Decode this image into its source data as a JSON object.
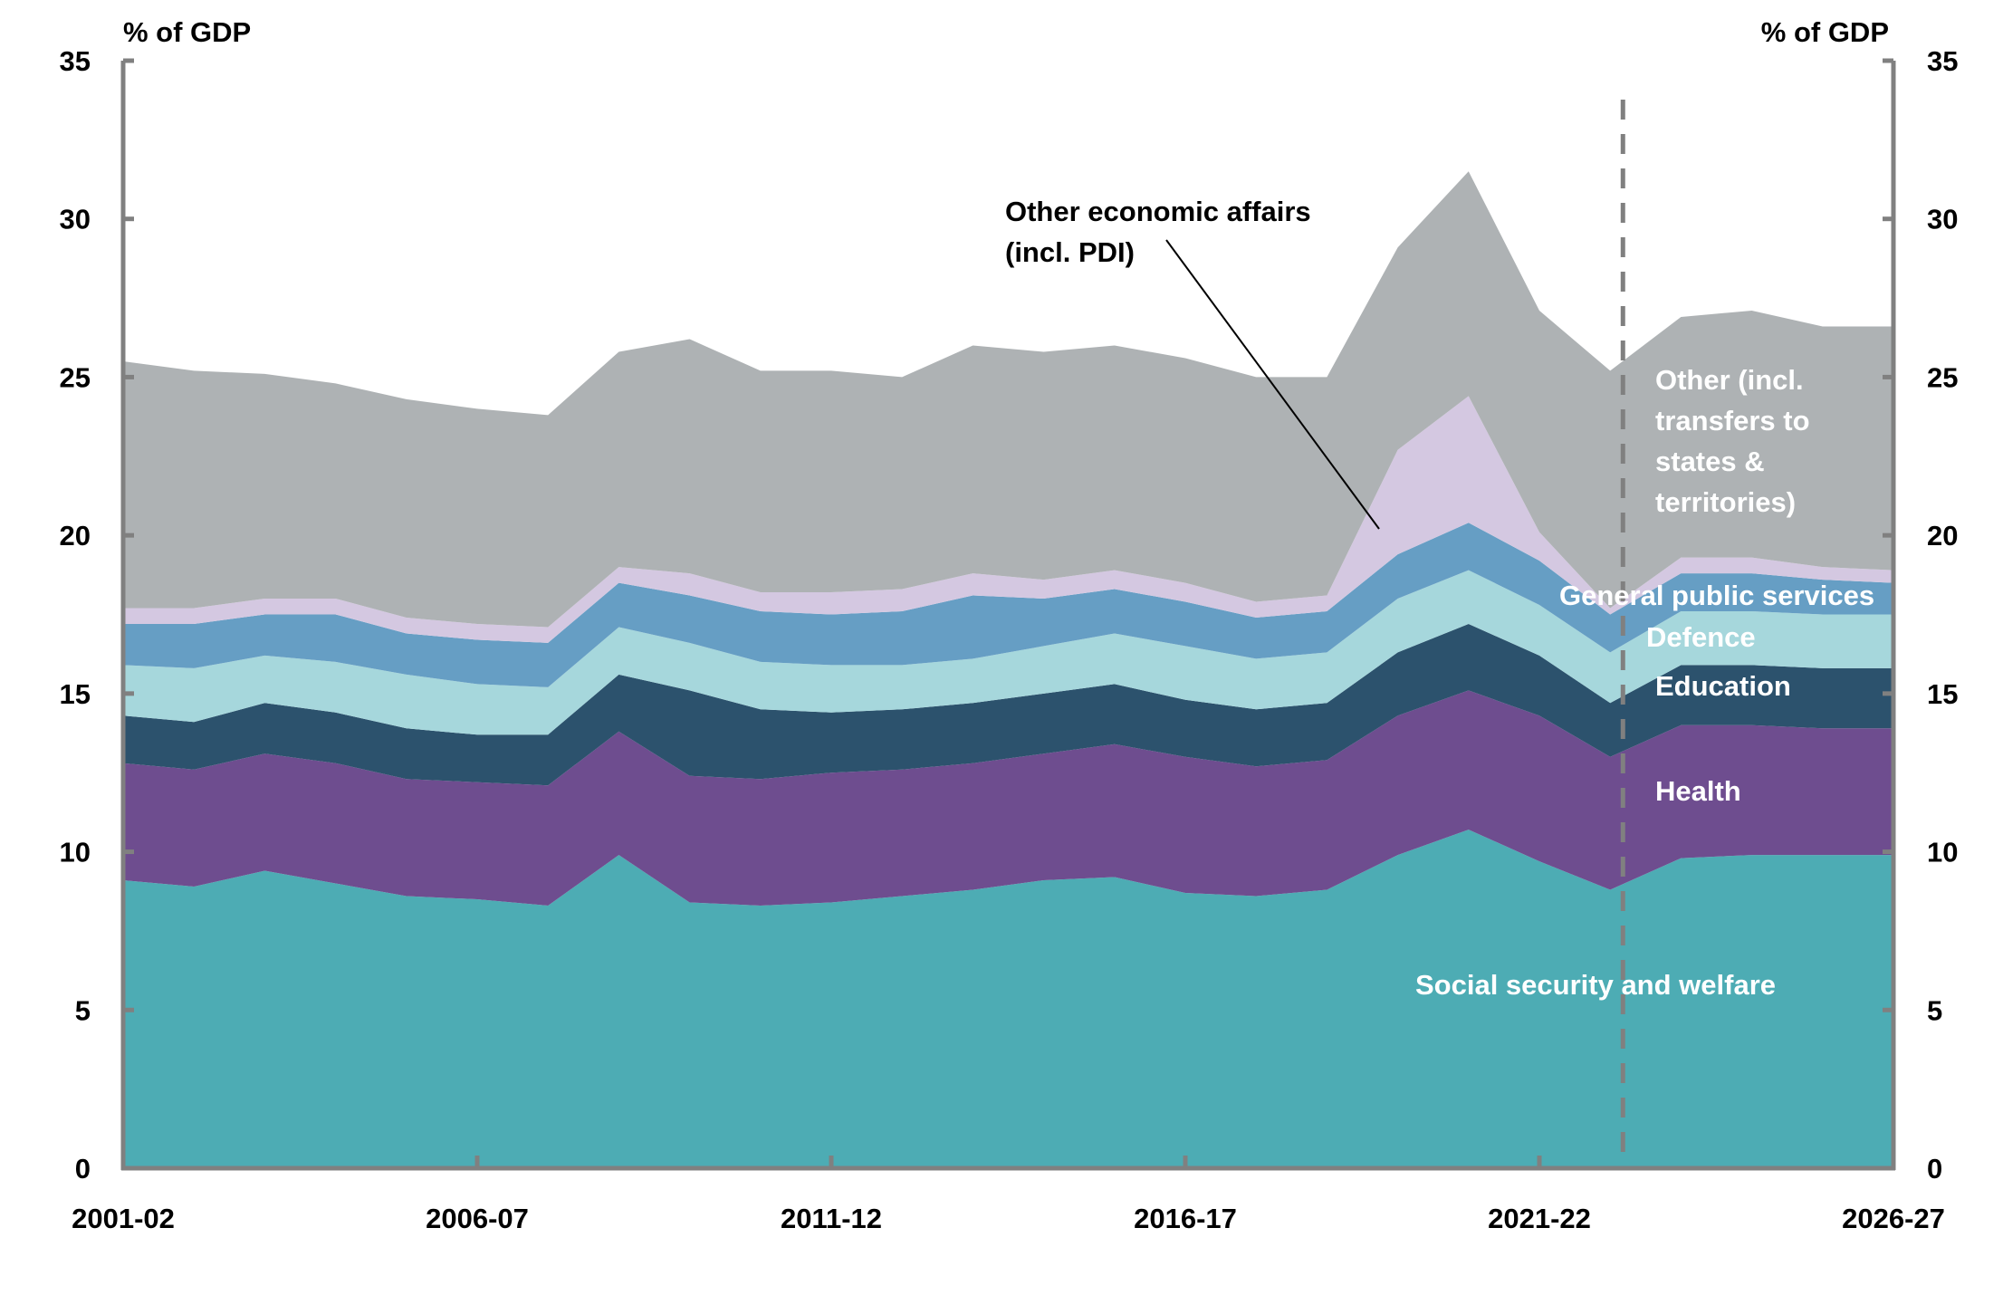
{
  "chart_data": {
    "type": "area",
    "stacked": true,
    "title": "",
    "xlabel": "",
    "ylabel_left": "% of GDP",
    "ylabel_right": "% of GDP",
    "ylim": [
      0,
      35
    ],
    "yticks": [
      0,
      5,
      10,
      15,
      20,
      25,
      30,
      35
    ],
    "grid": false,
    "x": [
      "2001-02",
      "2002-03",
      "2003-04",
      "2004-05",
      "2005-06",
      "2006-07",
      "2007-08",
      "2008-09",
      "2009-10",
      "2010-11",
      "2011-12",
      "2012-13",
      "2013-14",
      "2014-15",
      "2015-16",
      "2016-17",
      "2017-18",
      "2018-19",
      "2019-20",
      "2020-21",
      "2021-22",
      "2022-23",
      "2023-24",
      "2024-25",
      "2025-26",
      "2026-27"
    ],
    "xtick_labels": [
      "2001-02",
      "2006-07",
      "2011-12",
      "2016-17",
      "2021-22",
      "2026-27"
    ],
    "projection_divider_after": "2022-23",
    "series": [
      {
        "name": "Social security and welfare",
        "color": "#4DACB4",
        "values": [
          9.1,
          8.9,
          9.4,
          9.0,
          8.6,
          8.5,
          8.3,
          9.9,
          8.4,
          8.3,
          8.4,
          8.6,
          8.8,
          9.1,
          9.2,
          8.7,
          8.6,
          8.8,
          9.9,
          10.7,
          9.7,
          8.8,
          9.8,
          9.9,
          9.9,
          9.9
        ]
      },
      {
        "name": "Health",
        "color": "#6E4D8F",
        "values": [
          3.7,
          3.7,
          3.7,
          3.8,
          3.7,
          3.7,
          3.8,
          3.9,
          4.0,
          4.0,
          4.1,
          4.0,
          4.0,
          4.0,
          4.2,
          4.3,
          4.1,
          4.1,
          4.4,
          4.4,
          4.6,
          4.2,
          4.2,
          4.1,
          4.0,
          4.0
        ]
      },
      {
        "name": "Education",
        "color": "#2C526D",
        "values": [
          1.5,
          1.5,
          1.6,
          1.6,
          1.6,
          1.5,
          1.6,
          1.8,
          2.7,
          2.2,
          1.9,
          1.9,
          1.9,
          1.9,
          1.9,
          1.8,
          1.8,
          1.8,
          2.0,
          2.1,
          1.9,
          1.7,
          1.9,
          1.9,
          1.9,
          1.9
        ]
      },
      {
        "name": "Defence",
        "color": "#A6D7DC",
        "values": [
          1.6,
          1.7,
          1.5,
          1.6,
          1.7,
          1.6,
          1.5,
          1.5,
          1.5,
          1.5,
          1.5,
          1.4,
          1.4,
          1.5,
          1.6,
          1.7,
          1.6,
          1.6,
          1.7,
          1.7,
          1.6,
          1.6,
          1.7,
          1.7,
          1.7,
          1.7
        ]
      },
      {
        "name": "General public services",
        "color": "#669EC4",
        "values": [
          1.3,
          1.4,
          1.3,
          1.5,
          1.3,
          1.4,
          1.4,
          1.4,
          1.5,
          1.6,
          1.6,
          1.7,
          2.0,
          1.5,
          1.4,
          1.4,
          1.3,
          1.3,
          1.4,
          1.5,
          1.4,
          1.2,
          1.2,
          1.2,
          1.1,
          1.0
        ]
      },
      {
        "name": "Other economic affairs (incl. PDI)",
        "color": "#D4C8E1",
        "values": [
          0.5,
          0.5,
          0.5,
          0.5,
          0.5,
          0.5,
          0.5,
          0.5,
          0.7,
          0.6,
          0.7,
          0.7,
          0.7,
          0.6,
          0.6,
          0.6,
          0.5,
          0.5,
          3.3,
          4.0,
          0.9,
          0.2,
          0.5,
          0.5,
          0.4,
          0.4
        ]
      },
      {
        "name": "Other (incl. transfers to states & territories)",
        "color": "#AEB2B4",
        "values": [
          7.8,
          7.5,
          7.1,
          6.8,
          6.9,
          6.8,
          6.7,
          6.8,
          7.4,
          7.0,
          7.0,
          6.7,
          7.2,
          7.2,
          7.1,
          7.1,
          7.1,
          6.9,
          6.4,
          7.1,
          7.0,
          7.5,
          7.6,
          7.8,
          7.6,
          7.7
        ]
      }
    ],
    "inline_labels": {
      "social": "Social security and welfare",
      "health": "Health",
      "education": "Education",
      "defence": "Defence",
      "gps": "General public services",
      "other_lines": [
        "Other (incl.",
        "transfers to",
        "states &",
        "territories)"
      ]
    },
    "annotations": [
      {
        "text_lines": [
          "Other economic affairs",
          "(incl. PDI)"
        ],
        "points_to": "Other economic affairs (incl. PDI)",
        "at": "2019-20"
      }
    ],
    "axis_color": "#808080"
  }
}
